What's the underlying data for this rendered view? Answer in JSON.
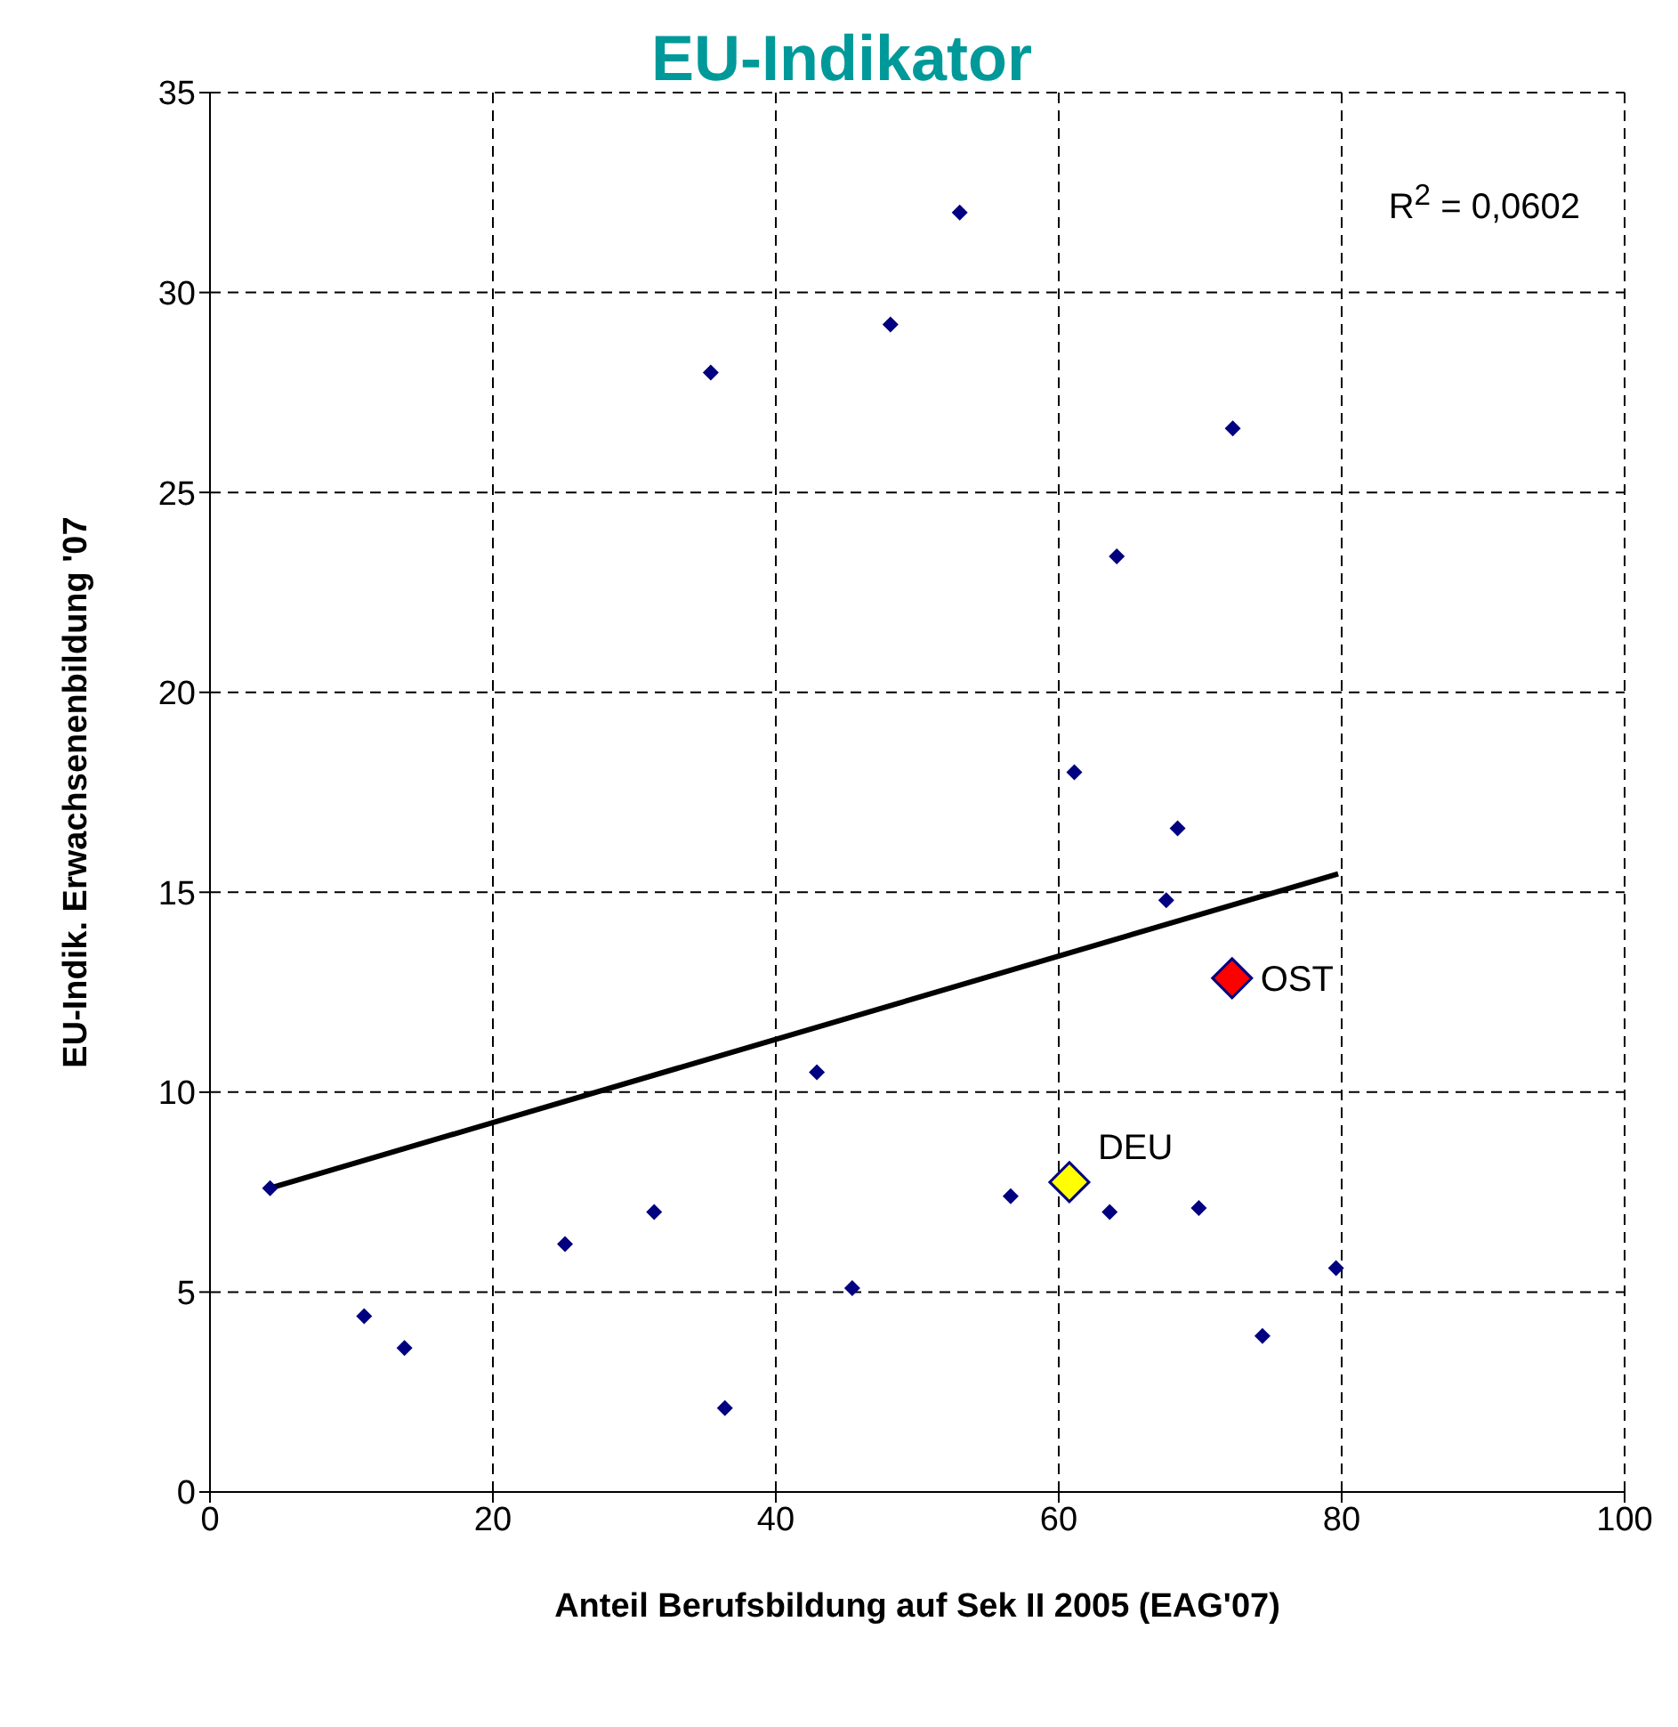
{
  "chart_data": {
    "type": "scatter",
    "title": "EU-Indikator",
    "xlabel": "Anteil Berufsbildung auf Sek II 2005 (EAG'07)",
    "ylabel": "EU-Indik. Erwachsenenbildung '07",
    "xlim": [
      0,
      100
    ],
    "xticks": [
      0,
      20,
      40,
      60,
      80,
      100
    ],
    "ylim": [
      0,
      35
    ],
    "yticks": [
      0,
      5,
      10,
      15,
      20,
      25,
      30,
      35
    ],
    "grid": true,
    "legend": false,
    "marker": "diamond",
    "series": [
      {
        "color": "#000080",
        "x": [
          4.25,
          10.9,
          13.75,
          25.1,
          31.4,
          35.4,
          36.4,
          42.9,
          45.4,
          48.1,
          53,
          56.6,
          61.1,
          63.6,
          64.1,
          67.6,
          68.4,
          69.9,
          72.3,
          74.4,
          79.6
        ],
        "values": [
          7.6,
          4.4,
          3.6,
          6.2,
          7.0,
          28.0,
          2.1,
          10.5,
          5.1,
          29.2,
          32.0,
          7.4,
          18.0,
          7.0,
          23.4,
          14.8,
          16.6,
          7.1,
          26.6,
          3.9,
          5.6
        ]
      },
      {
        "color": "#ffff00",
        "x": [
          60.75
        ],
        "values": [
          7.75
        ]
      },
      {
        "color": "#ff0000",
        "x": [
          72.25
        ],
        "values": [
          12.85
        ]
      },
      {
        "type": "line",
        "color": "#000000",
        "marker": "none",
        "x": [
          4.25,
          79.75
        ],
        "values": [
          7.6,
          15.46
        ]
      }
    ],
    "annotations": [
      "R$^{2}$ = 0,0602",
      {
        "text": "DEU",
        "x": 60.75,
        "y": 7.75
      },
      {
        "text": "OST",
        "x": 72.25,
        "y": 12.85
      }
    ]
  }
}
